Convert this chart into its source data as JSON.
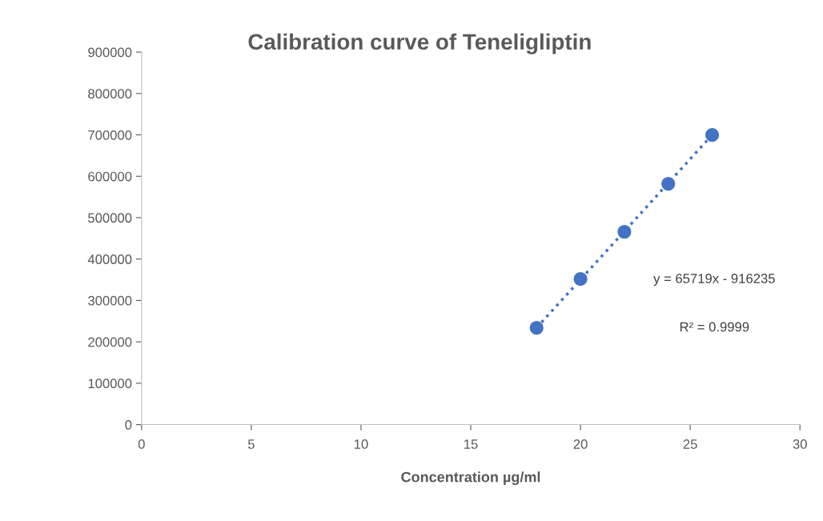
{
  "chart_data": {
    "type": "scatter",
    "title": "Calibration curve of Teneligliptin",
    "xlabel": "Concentration µg/ml",
    "x": [
      18,
      20,
      22,
      24,
      26
    ],
    "series": [
      {
        "color": "#4472c4",
        "values": [
          234000,
          352000,
          466000,
          582000,
          700000
        ],
        "marker": "circle"
      },
      {
        "type": "line",
        "color": "#4472c4",
        "x": [
          18,
          26
        ],
        "values": [
          234000,
          700000
        ],
        "line_style": "dotted",
        "marker": "none"
      }
    ],
    "xlim": [
      0,
      30
    ],
    "xticks": [
      0,
      5,
      10,
      15,
      20,
      25,
      30
    ],
    "ylim": [
      0,
      900000
    ],
    "yticks": [
      0,
      100000,
      200000,
      300000,
      400000,
      500000,
      600000,
      700000,
      800000,
      900000
    ],
    "grid": false,
    "annotations": [
      "y = 65719x - 916235",
      "R² = 0.9999"
    ]
  }
}
